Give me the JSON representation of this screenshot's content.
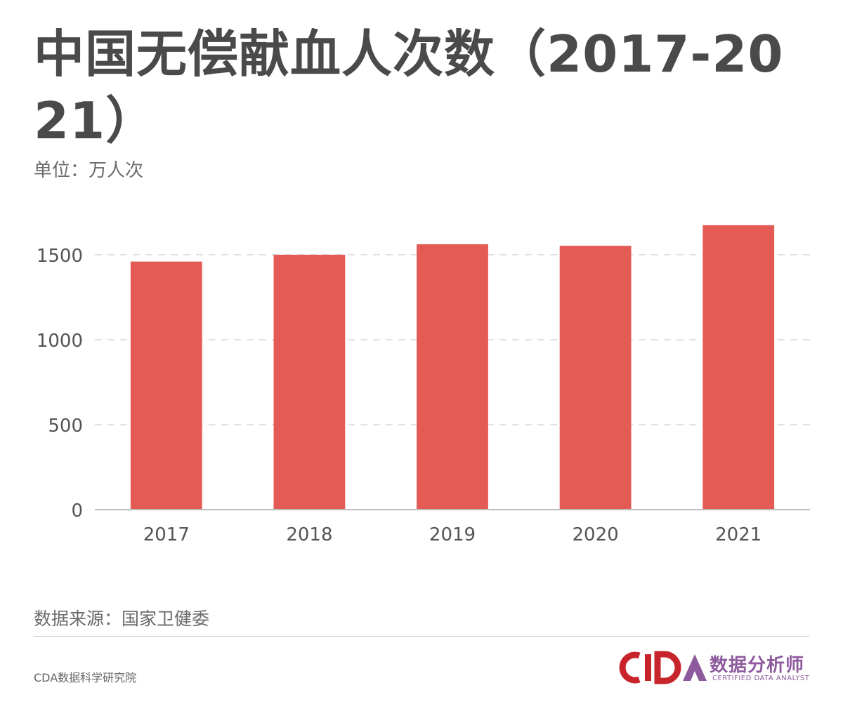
{
  "header": {
    "title": "中国无偿献血人次数（2017-2021）",
    "unit": "单位：万人次"
  },
  "footer": {
    "source": "数据来源：国家卫健委",
    "publisher": "CDA数据科学研究院",
    "logo_cn": "数据分析师",
    "logo_en": "CERTIFIED DATA ANALYST",
    "logo_letters": "CDA"
  },
  "colors": {
    "bar": "#e45b56",
    "logo_red": "#c8242b",
    "logo_purple": "#8e5a9e"
  },
  "chart_data": {
    "type": "bar",
    "title": "中国无偿献血人次数（2017-2021）",
    "ylabel": "单位：万人次",
    "xlabel": "",
    "categories": [
      "2017",
      "2018",
      "2019",
      "2020",
      "2021"
    ],
    "values": [
      1460,
      1500,
      1562,
      1553,
      1674
    ],
    "ylim": [
      0,
      1760
    ],
    "yticks": [
      0,
      500,
      1000,
      1500
    ],
    "grid": true,
    "legend": "none"
  }
}
